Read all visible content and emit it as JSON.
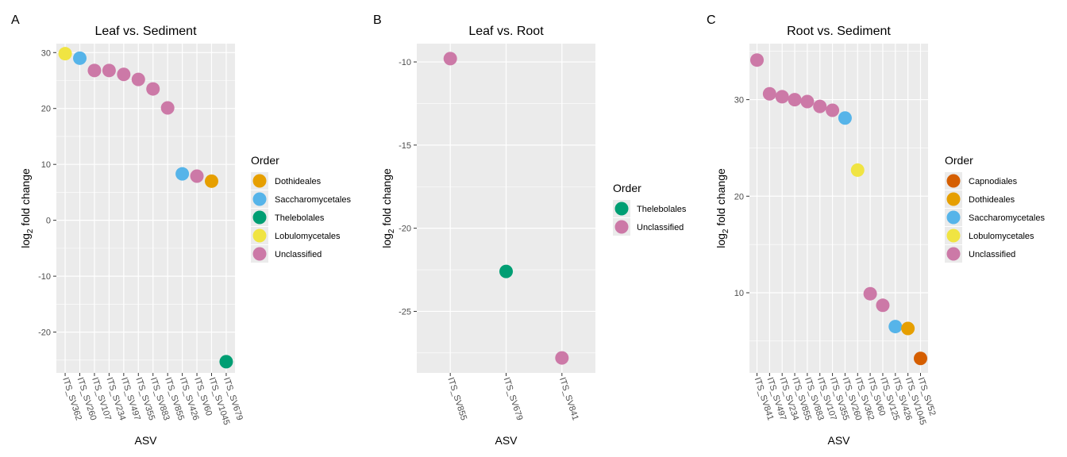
{
  "palette": {
    "Capnodiales": "#D55E00",
    "Dothideales": "#E69F00",
    "Saccharomycetales": "#56B4E9",
    "Thelebolales": "#009E73",
    "Lobulomycetales": "#F0E442",
    "Unclassified": "#CC79A7",
    "panel_background": "#EBEBEB",
    "grid": "#FFFFFF"
  },
  "chart_data": [
    {
      "type": "scatter",
      "tag": "A",
      "title": "Leaf vs. Sediment",
      "xlabel": "ASV",
      "ylabel_main": "log",
      "ylabel_sub": "2",
      "ylabel_rest": " fold change",
      "ylim": [
        -27.3,
        31.6
      ],
      "yticks": [
        30,
        20,
        10,
        0,
        -10,
        -20
      ],
      "ytick_labels": [
        "30",
        "20",
        "10",
        "0",
        "-10",
        "-20"
      ],
      "legend_title": "Order",
      "legend": [
        "Dothideales",
        "Saccharomycetales",
        "Thelebolales",
        "Lobulomycetales",
        "Unclassified"
      ],
      "categories": [
        "ITS_SV362",
        "ITS_SV260",
        "ITS_SV107",
        "ITS_SV234",
        "ITS_SV497",
        "ITS_SV355",
        "ITS_SV883",
        "ITS_SV855",
        "ITS_SV426",
        "ITS_SV60",
        "ITS_SV1045",
        "ITS_SV679"
      ],
      "points": [
        {
          "asv": "ITS_SV362",
          "y": 29.8,
          "order": "Lobulomycetales"
        },
        {
          "asv": "ITS_SV260",
          "y": 29.0,
          "order": "Saccharomycetales"
        },
        {
          "asv": "ITS_SV107",
          "y": 26.8,
          "order": "Unclassified"
        },
        {
          "asv": "ITS_SV234",
          "y": 26.8,
          "order": "Unclassified"
        },
        {
          "asv": "ITS_SV497",
          "y": 26.1,
          "order": "Unclassified"
        },
        {
          "asv": "ITS_SV355",
          "y": 25.2,
          "order": "Unclassified"
        },
        {
          "asv": "ITS_SV883",
          "y": 23.5,
          "order": "Unclassified"
        },
        {
          "asv": "ITS_SV855",
          "y": 20.1,
          "order": "Unclassified"
        },
        {
          "asv": "ITS_SV426",
          "y": 8.3,
          "order": "Saccharomycetales"
        },
        {
          "asv": "ITS_SV60",
          "y": 7.9,
          "order": "Unclassified"
        },
        {
          "asv": "ITS_SV1045",
          "y": 7.0,
          "order": "Dothideales"
        },
        {
          "asv": "ITS_SV679",
          "y": -25.3,
          "order": "Thelebolales"
        }
      ]
    },
    {
      "type": "scatter",
      "tag": "B",
      "title": "Leaf vs. Root",
      "xlabel": "ASV",
      "ylabel_main": "log",
      "ylabel_sub": "2",
      "ylabel_rest": " fold change",
      "ylim": [
        -28.7,
        -8.9
      ],
      "yticks": [
        -10,
        -15,
        -20,
        -25
      ],
      "ytick_labels": [
        "-10",
        "-15",
        "-20",
        "-25"
      ],
      "legend_title": "Order",
      "legend": [
        "Thelebolales",
        "Unclassified"
      ],
      "categories": [
        "ITS_SV855",
        "ITS_SV679",
        "ITS_SV841"
      ],
      "points": [
        {
          "asv": "ITS_SV855",
          "y": -9.8,
          "order": "Unclassified"
        },
        {
          "asv": "ITS_SV679",
          "y": -22.6,
          "order": "Thelebolales"
        },
        {
          "asv": "ITS_SV841",
          "y": -27.8,
          "order": "Unclassified"
        }
      ]
    },
    {
      "type": "scatter",
      "tag": "C",
      "title": "Root vs. Sediment",
      "xlabel": "ASV",
      "ylabel_main": "log",
      "ylabel_sub": "2",
      "ylabel_rest": " fold change",
      "ylim": [
        1.7,
        35.8
      ],
      "yticks": [
        30,
        20,
        10
      ],
      "ytick_labels": [
        "30",
        "20",
        "10"
      ],
      "legend_title": "Order",
      "legend": [
        "Capnodiales",
        "Dothideales",
        "Saccharomycetales",
        "Lobulomycetales",
        "Unclassified"
      ],
      "categories": [
        "ITS_SV841",
        "ITS_SV497",
        "ITS_SV234",
        "ITS_SV855",
        "ITS_SV883",
        "ITS_SV107",
        "ITS_SV355",
        "ITS_SV260",
        "ITS_SV362",
        "ITS_SV60",
        "ITS_SV125",
        "ITS_SV426",
        "ITS_SV1045",
        "ITS_SV52"
      ],
      "points": [
        {
          "asv": "ITS_SV841",
          "y": 34.1,
          "order": "Unclassified"
        },
        {
          "asv": "ITS_SV497",
          "y": 30.6,
          "order": "Unclassified"
        },
        {
          "asv": "ITS_SV234",
          "y": 30.3,
          "order": "Unclassified"
        },
        {
          "asv": "ITS_SV855",
          "y": 30.0,
          "order": "Unclassified"
        },
        {
          "asv": "ITS_SV883",
          "y": 29.8,
          "order": "Unclassified"
        },
        {
          "asv": "ITS_SV107",
          "y": 29.3,
          "order": "Unclassified"
        },
        {
          "asv": "ITS_SV355",
          "y": 28.9,
          "order": "Unclassified"
        },
        {
          "asv": "ITS_SV260",
          "y": 28.1,
          "order": "Saccharomycetales"
        },
        {
          "asv": "ITS_SV362",
          "y": 22.7,
          "order": "Lobulomycetales"
        },
        {
          "asv": "ITS_SV60",
          "y": 9.9,
          "order": "Unclassified"
        },
        {
          "asv": "ITS_SV125",
          "y": 8.7,
          "order": "Unclassified"
        },
        {
          "asv": "ITS_SV426",
          "y": 6.5,
          "order": "Saccharomycetales"
        },
        {
          "asv": "ITS_SV1045",
          "y": 6.3,
          "order": "Dothideales"
        },
        {
          "asv": "ITS_SV52",
          "y": 3.2,
          "order": "Capnodiales"
        }
      ]
    }
  ]
}
